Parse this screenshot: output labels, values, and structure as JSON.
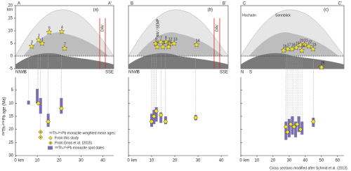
{
  "figure": {
    "y_axis_label": "²³²Th-²⁰⁸Pb age (Ma)",
    "section_axis": {
      "unit": "km",
      "ticks": [
        20,
        15,
        10,
        5,
        0,
        -5
      ]
    },
    "legend_title": "²³²Th-²⁰⁸Pb monazite weighted mean ages:",
    "credit": "Cross sections modified after Schmid et al. (2013)."
  },
  "chart_data": [
    {
      "type": "scatter",
      "panel": "(a)",
      "section_start": "A",
      "section_end": "A'",
      "directions": [
        "NNW",
        "S",
        "SSE"
      ],
      "places": [
        "DAV"
      ],
      "stars": [
        "2",
        "3",
        "5",
        "4",
        "1",
        "7"
      ],
      "x_unit": "km",
      "xlim": [
        0,
        45
      ],
      "xticks": [
        0,
        10,
        20,
        30,
        40
      ],
      "ylim": [
        0,
        30
      ],
      "yticks": [
        5,
        10,
        15,
        20,
        25,
        30
      ],
      "series": [
        {
          "name": "²³²Th-²⁰⁸Pb monazite spot dates",
          "color": "#7b6fb3",
          "x": [
            6,
            10,
            11.5,
            15,
            21
          ],
          "ranges": [
            [
              9,
              10.5
            ],
            [
              4.5,
              10
            ],
            [
              8,
              14
            ],
            [
              14,
              19
            ],
            [
              8,
              14
            ]
          ]
        },
        {
          "name": "From this study",
          "color": "#f5e61b",
          "x": [
            10.5,
            15,
            21
          ],
          "values": [
            10,
            17,
            12
          ]
        },
        {
          "name": "From Gnos et al. (2015)",
          "color": "#f5e61b",
          "x": [
            11.5,
            11.5
          ],
          "values": [
            21,
            23
          ]
        }
      ]
    },
    {
      "type": "scatter",
      "panel": "(b)",
      "section_start": "B",
      "section_end": "B'",
      "directions": [
        "NNW",
        "S",
        "SSE"
      ],
      "places": [
        "NW / SEMP",
        "DAV"
      ],
      "stars": [
        "9",
        "7",
        "8",
        "6",
        "12",
        "13",
        "11",
        "10",
        "14"
      ],
      "x_unit": "km",
      "xlim": [
        0,
        43
      ],
      "xticks": [
        0,
        10,
        20,
        30,
        40
      ],
      "ylim": [
        0,
        30
      ],
      "yticks": [
        5,
        10,
        15,
        20,
        25,
        30
      ],
      "series": [
        {
          "color": "#7b6fb3",
          "x": [
            10,
            11,
            12,
            14,
            16,
            29
          ],
          "ranges": [
            [
              14,
              19
            ],
            [
              12.5,
              18
            ],
            [
              11.5,
              17
            ],
            [
              13.5,
              17.5
            ],
            [
              15,
              18
            ],
            [
              14.5,
              16.5
            ]
          ]
        },
        {
          "color": "#f5e61b",
          "x": [
            10,
            11,
            12,
            14,
            16,
            29
          ],
          "values": [
            17,
            15,
            13,
            14.5,
            17,
            15.5
          ]
        }
      ]
    },
    {
      "type": "scatter",
      "panel": "(c)",
      "section_start": "C",
      "section_end": "C'",
      "directions": [
        "N",
        "S"
      ],
      "places": [
        "Hochalm",
        "Sonnblick"
      ],
      "stars": [
        "16",
        "17",
        "18",
        "19",
        "20",
        "21",
        "22",
        "23",
        "24",
        "25"
      ],
      "x_unit": "km",
      "xlim": [
        0,
        64
      ],
      "xticks": [
        0,
        10,
        20,
        30,
        40,
        50,
        60
      ],
      "ylim": [
        0,
        30
      ],
      "yticks": [
        5,
        10,
        15,
        20,
        25,
        30
      ],
      "series": [
        {
          "color": "#7b6fb3",
          "x": [
            28,
            30,
            32,
            34,
            36,
            38,
            45
          ],
          "ranges": [
            [
              17,
              24
            ],
            [
              16,
              23
            ],
            [
              15,
              22
            ],
            [
              17,
              23
            ],
            [
              15,
              21
            ],
            [
              17,
              22
            ],
            [
              15.5,
              19
            ]
          ]
        },
        {
          "color": "#f5e61b",
          "x": [
            28,
            29,
            31,
            33,
            35,
            37,
            45
          ],
          "values": [
            19,
            21,
            18,
            19,
            18,
            20,
            17
          ]
        }
      ]
    }
  ]
}
